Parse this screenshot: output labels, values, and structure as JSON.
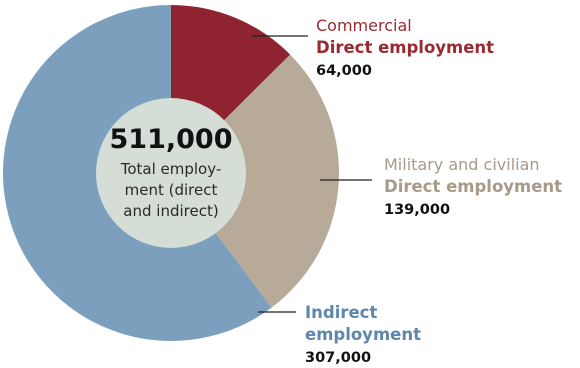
{
  "chart_data": {
    "type": "pie",
    "donut": true,
    "total": {
      "value": "511,000",
      "caption": [
        "Total employ-",
        "ment (direct",
        "and indirect)"
      ]
    },
    "slices": [
      {
        "key": "commercial",
        "value": 64000,
        "line1": "Commercial",
        "line2": "Direct employment",
        "line3": null,
        "value_label": "64,000",
        "color": "#8f2430",
        "label_color": "#9a2a32"
      },
      {
        "key": "military",
        "value": 139000,
        "line1": "Military and civilian",
        "line2": "Direct employment",
        "line3": null,
        "value_label": "139,000",
        "color": "#b8aa98",
        "label_color": "#a89a88"
      },
      {
        "key": "indirect",
        "value": 307000,
        "line1": null,
        "line2": "Indirect",
        "line3": "employment",
        "value_label": "307,000",
        "color": "#7b9fbd",
        "label_color": "#5f86ad"
      }
    ],
    "center_color": "#d4ddd6"
  }
}
